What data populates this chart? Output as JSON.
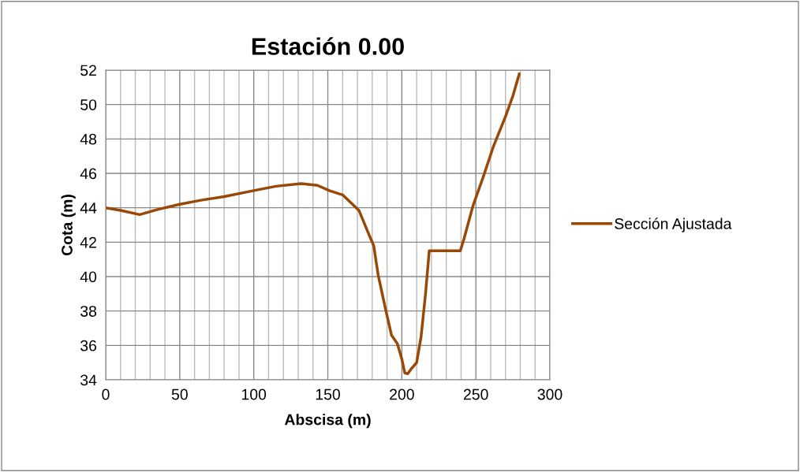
{
  "chart_data": {
    "type": "line",
    "title": "Estación 0.00",
    "xlabel": "Abscisa (m)",
    "ylabel": "Cota (m)",
    "series": [
      {
        "name": "Sección Ajustada",
        "color": "#984807",
        "x": [
          0,
          10,
          23,
          35,
          50,
          65,
          80,
          100,
          115,
          132,
          143,
          151,
          160,
          171,
          178,
          181,
          184,
          189,
          193,
          197,
          200,
          202,
          204,
          206,
          210,
          213,
          216,
          218.5,
          230,
          239.5,
          242,
          248,
          255,
          262,
          270,
          275,
          279.3
        ],
        "values": [
          44,
          43.85,
          43.6,
          43.9,
          44.2,
          44.45,
          44.65,
          45.0,
          45.25,
          45.4,
          45.3,
          45.0,
          44.75,
          43.85,
          42.4,
          41.8,
          40.1,
          38.1,
          36.6,
          36.1,
          35.2,
          34.4,
          34.35,
          34.6,
          35.0,
          36.5,
          39.0,
          41.5,
          41.5,
          41.5,
          42.2,
          44.1,
          45.8,
          47.6,
          49.3,
          50.5,
          51.77
        ]
      }
    ],
    "xlim": [
      0,
      300
    ],
    "xticks": [
      0,
      50,
      100,
      150,
      200,
      250,
      300
    ],
    "ylim": [
      34,
      52
    ],
    "yticks": [
      34,
      36,
      38,
      40,
      42,
      44,
      46,
      48,
      50,
      52
    ],
    "grid": true,
    "legend": "right",
    "marker": "none",
    "line_style": "solid"
  }
}
